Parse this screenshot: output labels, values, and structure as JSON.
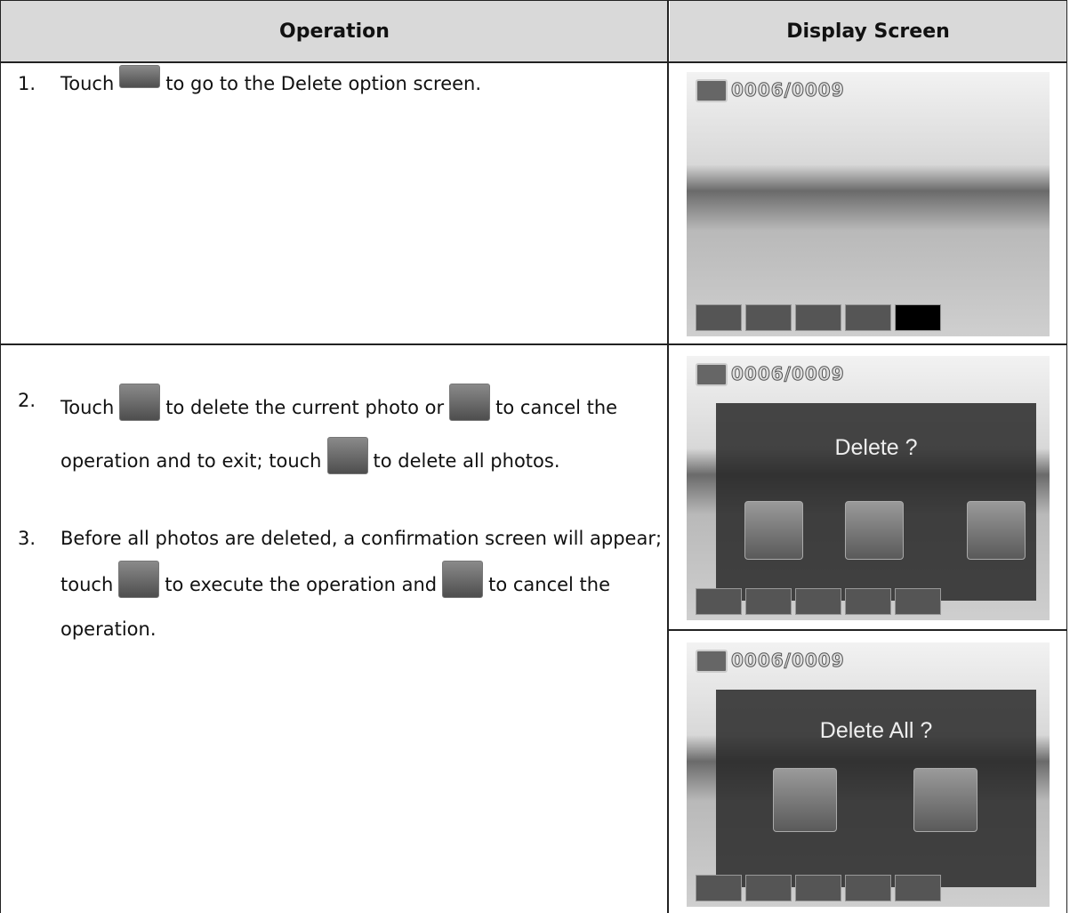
{
  "header": {
    "operation": "Operation",
    "display": "Display Screen"
  },
  "steps": [
    {
      "number": "1.",
      "parts": [
        "Touch",
        "to go to the Delete option screen."
      ]
    },
    {
      "number": "2.",
      "parts": [
        "Touch",
        "to delete the current photo or",
        "to cancel the operation and to exit; touch",
        "to delete all photos."
      ]
    },
    {
      "number": "3.",
      "parts": [
        "Before all photos are deleted, a confirmation screen will appear; touch",
        "to execute the operation and",
        "to cancel the operation."
      ]
    }
  ],
  "screens": [
    {
      "counter": "0006/0009"
    },
    {
      "counter": "0006/0009",
      "dialog": "Delete ?"
    },
    {
      "counter": "0006/0009",
      "dialog": "Delete All ?"
    }
  ]
}
